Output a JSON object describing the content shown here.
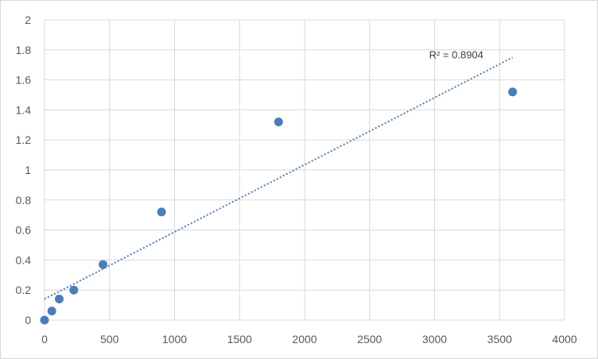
{
  "chart_data": {
    "type": "scatter",
    "title": "",
    "xlabel": "",
    "ylabel": "",
    "xlim": [
      0,
      4000
    ],
    "ylim": [
      0,
      2
    ],
    "x_ticks": [
      "0",
      "500",
      "1000",
      "1500",
      "2000",
      "2500",
      "3000",
      "3500",
      "4000"
    ],
    "y_ticks": [
      "0",
      "0.2",
      "0.4",
      "0.6",
      "0.8",
      "1",
      "1.2",
      "1.4",
      "1.6",
      "1.8",
      "2"
    ],
    "grid": true,
    "legend": "none",
    "series": [
      {
        "points": [
          {
            "x": 0,
            "y": 0
          },
          {
            "x": 56,
            "y": 0.06
          },
          {
            "x": 113,
            "y": 0.14
          },
          {
            "x": 225,
            "y": 0.2
          },
          {
            "x": 450,
            "y": 0.37
          },
          {
            "x": 900,
            "y": 0.72
          },
          {
            "x": 1800,
            "y": 1.32
          },
          {
            "x": 3600,
            "y": 1.52
          }
        ],
        "color": "#4a7ebb"
      }
    ],
    "trendline": {
      "type": "linear",
      "style": "dotted",
      "color": "#4a7ebb",
      "x_range": [
        0,
        3600
      ],
      "y_start": 0.14,
      "y_end": 1.75,
      "r2_label": "R² = 0.8904"
    }
  }
}
